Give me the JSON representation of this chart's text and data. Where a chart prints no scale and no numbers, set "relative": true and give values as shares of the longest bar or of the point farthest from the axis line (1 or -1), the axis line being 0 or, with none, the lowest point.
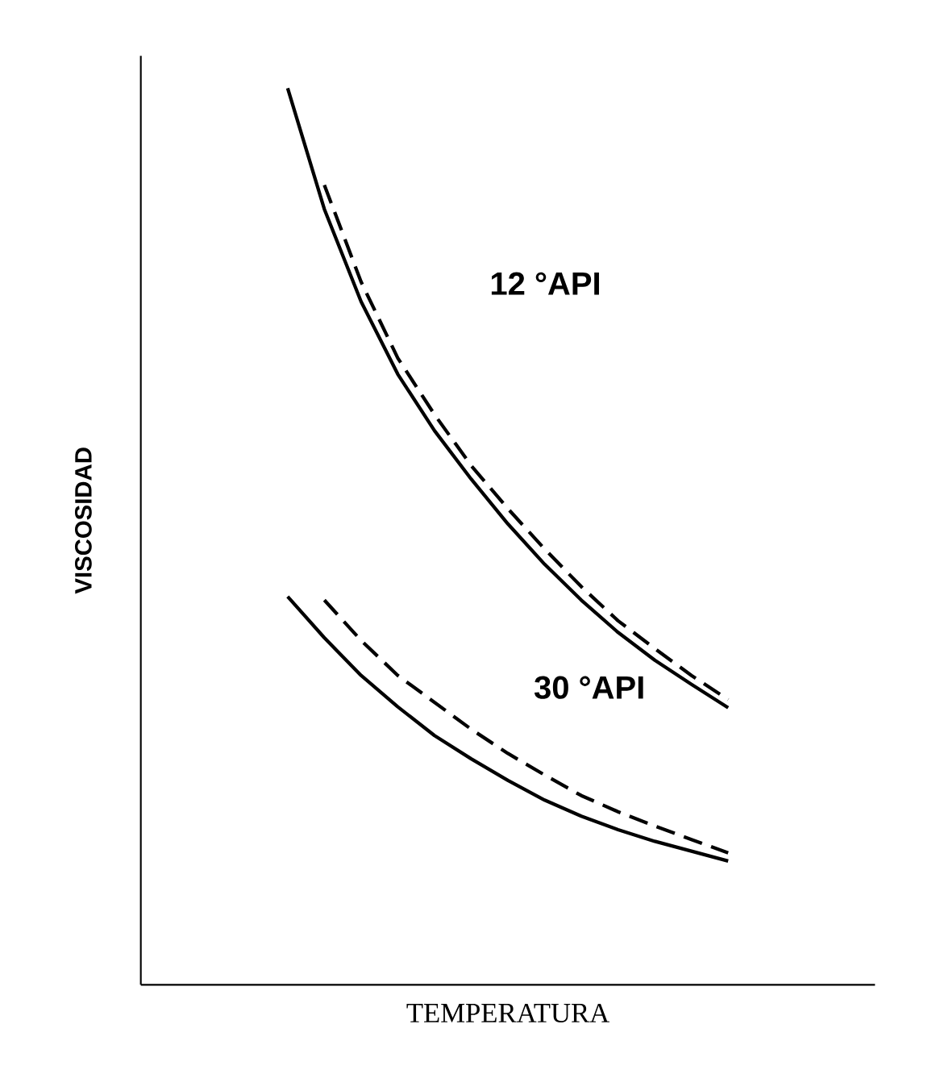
{
  "chart_data": {
    "type": "line",
    "relative": true,
    "xlabel": "TEMPERATURA",
    "ylabel": "VISCOSIDAD",
    "categories": [
      null,
      null,
      null,
      null,
      null,
      null,
      null,
      null,
      null,
      null,
      null,
      null,
      null,
      null,
      null,
      null,
      null,
      null,
      null,
      null,
      null
    ],
    "series": [
      {
        "color": "#000000",
        "line_style": "solid",
        "values": [
          null,
          null,
          null,
          null,
          1,
          0.865,
          0.762,
          0.681,
          0.618,
          0.564,
          0.514,
          0.469,
          0.429,
          0.393,
          0.362,
          0.335,
          0.309,
          null,
          null,
          null,
          null
        ]
      },
      {
        "color": "#000000",
        "line_style": "dashed",
        "values": [
          null,
          null,
          null,
          null,
          null,
          0.892,
          0.784,
          0.699,
          0.636,
          0.579,
          0.531,
          0.486,
          0.444,
          0.406,
          0.375,
          0.345,
          0.318,
          null,
          null,
          null,
          null
        ]
      },
      {
        "color": "#000000",
        "line_style": "solid",
        "values": [
          null,
          null,
          null,
          null,
          0.433,
          0.387,
          0.345,
          0.31,
          0.278,
          0.252,
          0.228,
          0.206,
          0.188,
          0.173,
          0.16,
          0.149,
          0.138,
          null,
          null,
          null,
          null
        ]
      },
      {
        "color": "#000000",
        "line_style": "dashed",
        "values": [
          null,
          null,
          null,
          null,
          null,
          0.429,
          0.384,
          0.345,
          0.315,
          0.285,
          0.258,
          0.234,
          0.211,
          0.193,
          0.177,
          0.162,
          0.147,
          null,
          null,
          null,
          null
        ]
      }
    ],
    "annotations": [
      "12 °API",
      "30 °API"
    ],
    "marker": "none"
  }
}
